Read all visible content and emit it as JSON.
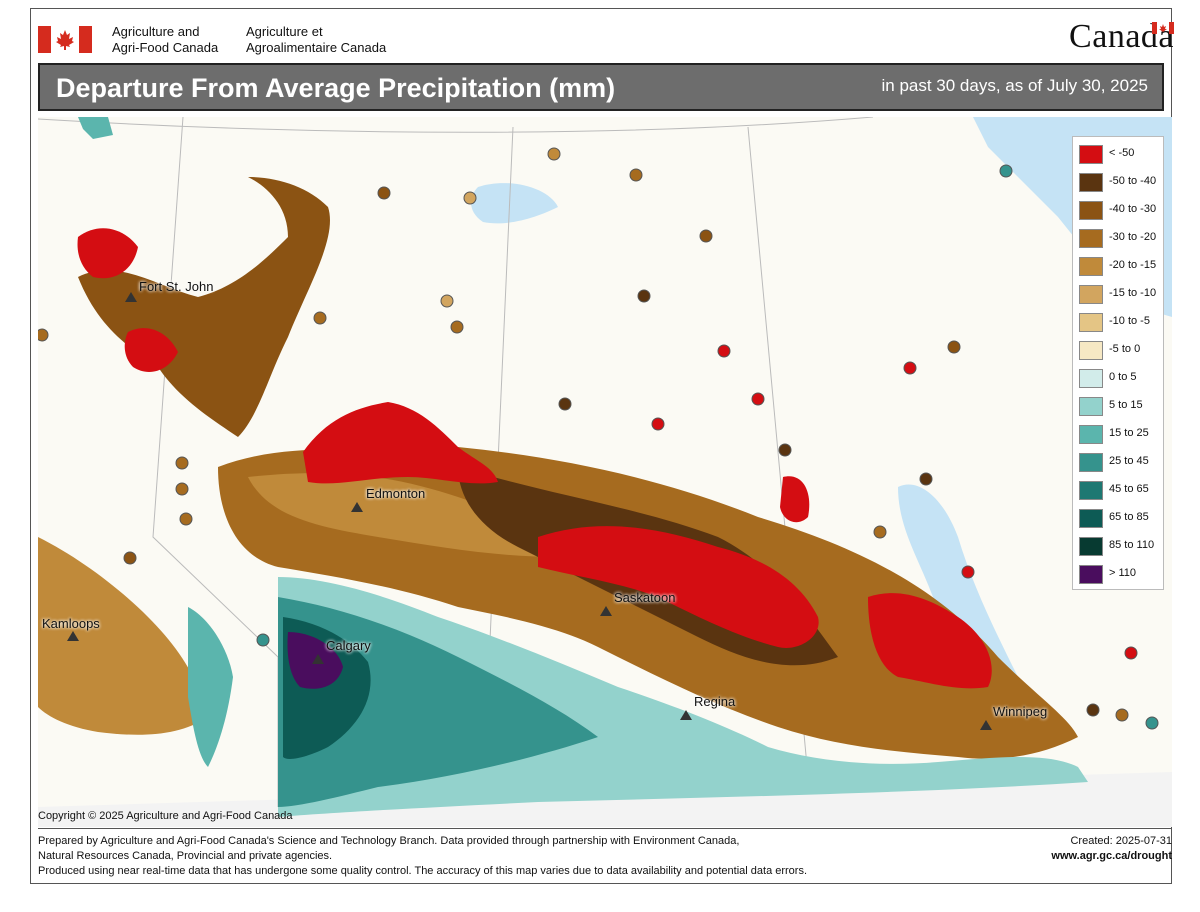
{
  "header": {
    "agency_en_line1": "Agriculture and",
    "agency_en_line2": "Agri-Food Canada",
    "agency_fr_line1": "Agriculture et",
    "agency_fr_line2": "Agroalimentaire Canada",
    "wordmark": "Canada"
  },
  "title": {
    "main": "Departure From Average Precipitation (mm)",
    "sub": "in past 30 days, as of July 30, 2025"
  },
  "cities": [
    {
      "name": "Fort St. John"
    },
    {
      "name": "Edmonton"
    },
    {
      "name": "Kamloops"
    },
    {
      "name": "Calgary"
    },
    {
      "name": "Saskatoon"
    },
    {
      "name": "Regina"
    },
    {
      "name": "Winnipeg"
    }
  ],
  "legend": [
    {
      "label": "< -50",
      "color": "#d40d12"
    },
    {
      "label": "-50 to -40",
      "color": "#5a3410"
    },
    {
      "label": "-40 to -30",
      "color": "#8b5313"
    },
    {
      "label": "-30 to -20",
      "color": "#a66b1f"
    },
    {
      "label": "-20 to -15",
      "color": "#c08a3a"
    },
    {
      "label": "-15 to -10",
      "color": "#d2a55f"
    },
    {
      "label": "-10 to -5",
      "color": "#e4c585"
    },
    {
      "label": "-5 to 0",
      "color": "#f6e8c4"
    },
    {
      "label": "0 to 5",
      "color": "#d2ecea"
    },
    {
      "label": "5 to 15",
      "color": "#93d2cc"
    },
    {
      "label": "15 to 25",
      "color": "#5bb5ad"
    },
    {
      "label": "25 to 45",
      "color": "#35938d"
    },
    {
      "label": "45 to 65",
      "color": "#1d7872"
    },
    {
      "label": "65 to 85",
      "color": "#0d5b55"
    },
    {
      "label": "85 to 110",
      "color": "#073a31"
    },
    {
      "label": "> 110",
      "color": "#4a0d5e"
    }
  ],
  "footer": {
    "copyright": "Copyright © 2025 Agriculture and Agri-Food Canada",
    "line1": "Prepared by Agriculture and Agri-Food Canada's Science and Technology Branch. Data provided through partnership with Environment Canada,",
    "line2": "Natural Resources Canada, Provincial and private agencies.",
    "line3": "Produced using near real-time data that has undergone some quality control. The accuracy of this map varies due to data availability and potential data errors.",
    "created": "Created:  2025-07-31",
    "url": "www.agr.gc.ca/drought"
  },
  "colors": {
    "title_bg": "#6d6d6d",
    "flag_red": "#d52b1e",
    "water": "#c5e3f5"
  }
}
